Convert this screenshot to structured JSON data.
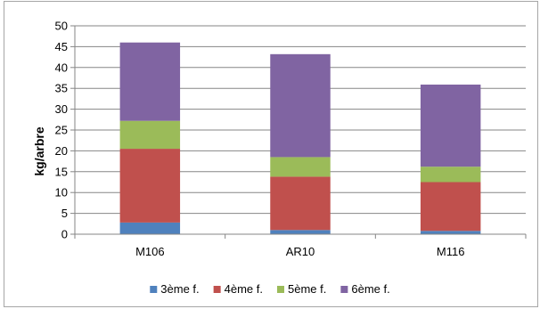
{
  "chart_data": {
    "type": "bar",
    "stacked": true,
    "title": "",
    "xlabel": "",
    "ylabel": "kg/arbre",
    "ylim": [
      0,
      50
    ],
    "yticks": [
      0,
      5,
      10,
      15,
      20,
      25,
      30,
      35,
      40,
      45,
      50
    ],
    "grid": true,
    "legend_position": "bottom",
    "categories": [
      "M106",
      "AR10",
      "M116"
    ],
    "series": [
      {
        "name": "3ème f.",
        "color": "#4f81bd",
        "values": [
          2.8,
          1.0,
          0.8
        ]
      },
      {
        "name": "4ème f.",
        "color": "#c0504d",
        "values": [
          17.7,
          12.8,
          11.7
        ]
      },
      {
        "name": "5ème f.",
        "color": "#9bbb59",
        "values": [
          6.7,
          4.7,
          3.7
        ]
      },
      {
        "name": "6ème f.",
        "color": "#8064a2",
        "values": [
          18.8,
          24.7,
          19.7
        ]
      }
    ]
  }
}
